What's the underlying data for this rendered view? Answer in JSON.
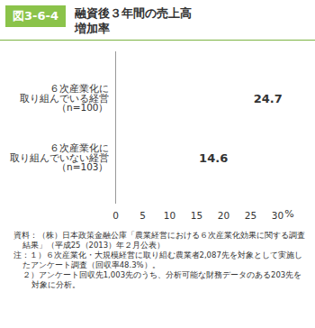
{
  "chart_data": {
    "type": "bar",
    "orientation": "horizontal",
    "figure_label": "図3-6-4",
    "title": "融資後３年間の売上高\n増加率",
    "categories": [
      "６次産業化に\n取り組んでいる経営\n（n=100）",
      "６次産業化に\n取り組んでいない経営\n（n=103）"
    ],
    "values": [
      24.7,
      14.6
    ],
    "color": "#c5e1a5",
    "data_labels": true,
    "xlim": [
      0,
      30
    ],
    "xticks": [
      0,
      5,
      10,
      15,
      20,
      25,
      30
    ],
    "x_label": "%",
    "grid": false,
    "source": "資料：（株）日本政策金融公庫「農業経営における６次産業化効果に関する調査結果」（平成25（2013）年２月公表）",
    "notes": [
      "注：１）６次産業化・大規模経営に取り組む農業者2,087先を対象として実施したアンケート調査（回収率48.3%）。",
      "２）アンケート回収先1,003先のうち、分析可能な財務データのある203先を対象に分析。"
    ]
  }
}
